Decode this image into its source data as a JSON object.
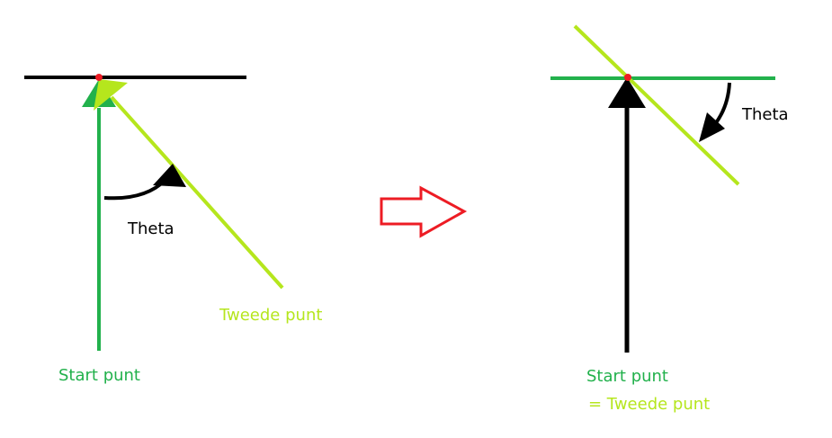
{
  "colors": {
    "green": "#22b14c",
    "lime": "#b5e61d",
    "black": "#000000",
    "red": "#ed1c24"
  },
  "left_panel": {
    "theta_label": "Theta",
    "second_point_label": "Tweede punt",
    "start_point_label": "Start punt"
  },
  "right_panel": {
    "theta_label": "Theta",
    "start_point_label": "Start punt",
    "equals_second_label": "= Tweede punt"
  }
}
